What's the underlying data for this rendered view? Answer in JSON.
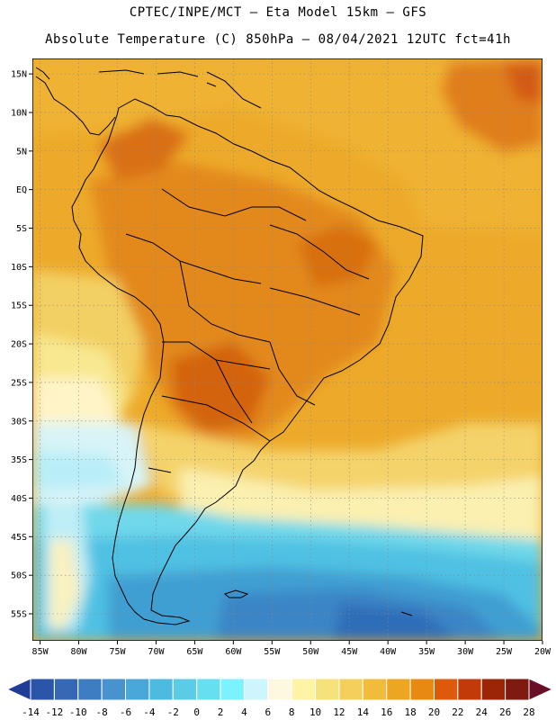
{
  "title": {
    "line1": "CPTEC/INPE/MCT –  Eta Model 15km – GFS",
    "line2": "Absolute Temperature (C) 850hPa – 08/04/2021 12UTC fct=41h"
  },
  "axes": {
    "lat_ticks": [
      {
        "label": "15N",
        "lat": 15
      },
      {
        "label": "10N",
        "lat": 10
      },
      {
        "label": "5N",
        "lat": 5
      },
      {
        "label": "EQ",
        "lat": 0
      },
      {
        "label": "5S",
        "lat": -5
      },
      {
        "label": "10S",
        "lat": -10
      },
      {
        "label": "15S",
        "lat": -15
      },
      {
        "label": "20S",
        "lat": -20
      },
      {
        "label": "25S",
        "lat": -25
      },
      {
        "label": "30S",
        "lat": -30
      },
      {
        "label": "35S",
        "lat": -35
      },
      {
        "label": "40S",
        "lat": -40
      },
      {
        "label": "45S",
        "lat": -45
      },
      {
        "label": "50S",
        "lat": -50
      },
      {
        "label": "55S",
        "lat": -55
      }
    ],
    "lon_ticks": [
      {
        "label": "85W",
        "lon": -85
      },
      {
        "label": "80W",
        "lon": -80
      },
      {
        "label": "75W",
        "lon": -75
      },
      {
        "label": "70W",
        "lon": -70
      },
      {
        "label": "65W",
        "lon": -65
      },
      {
        "label": "60W",
        "lon": -60
      },
      {
        "label": "55W",
        "lon": -55
      },
      {
        "label": "50W",
        "lon": -50
      },
      {
        "label": "45W",
        "lon": -45
      },
      {
        "label": "40W",
        "lon": -40
      },
      {
        "label": "35W",
        "lon": -35
      },
      {
        "label": "30W",
        "lon": -30
      },
      {
        "label": "25W",
        "lon": -25
      },
      {
        "label": "20W",
        "lon": -20
      }
    ],
    "lon_range": [
      -86,
      -20
    ],
    "lat_range": [
      -58.5,
      17
    ]
  },
  "colorbar": {
    "levels": [
      "-14",
      "-12",
      "-10",
      "-8",
      "-6",
      "-4",
      "-2",
      "0",
      "2",
      "4",
      "6",
      "8",
      "10",
      "12",
      "14",
      "16",
      "18",
      "20",
      "22",
      "24",
      "26",
      "28"
    ],
    "colors": [
      "#1f3c96",
      "#2b55a8",
      "#3569b5",
      "#3f7dc2",
      "#4893cd",
      "#4aa8d8",
      "#4dbbe0",
      "#5ccbe6",
      "#66dff0",
      "#7df2ff",
      "#cdf5fb",
      "#fff8e0",
      "#fff3a6",
      "#f6e27a",
      "#f4cf5c",
      "#f1bb3c",
      "#eda622",
      "#e88a12",
      "#dd5a0a",
      "#c23a08",
      "#9c2506",
      "#7e1a10",
      "#6a1026"
    ]
  },
  "colors": {
    "frame": "#000000",
    "grid": "#888888",
    "coast": "#000000"
  }
}
